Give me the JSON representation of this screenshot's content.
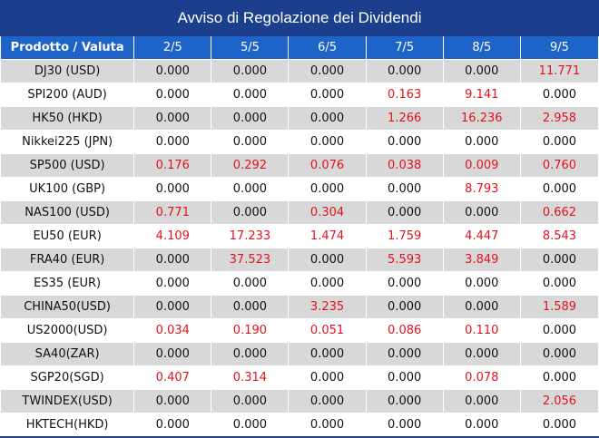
{
  "title": "Avviso di Regolazione dei Dividendi",
  "header": {
    "product": "Prodotto / Valuta",
    "dates": [
      "2/5",
      "5/5",
      "6/5",
      "7/5",
      "8/5",
      "9/5"
    ]
  },
  "colors": {
    "title_bg": "#1b3f8c",
    "header_bg": "#1e63c8",
    "stripe": "#d8d8d8",
    "nonzero": "#e0141c",
    "zero": "#111111"
  },
  "rows": [
    {
      "product": "DJ30 (USD)",
      "values": [
        "0.000",
        "0.000",
        "0.000",
        "0.000",
        "0.000",
        "11.771"
      ]
    },
    {
      "product": "SPI200 (AUD)",
      "values": [
        "0.000",
        "0.000",
        "0.000",
        "0.163",
        "9.141",
        "0.000"
      ]
    },
    {
      "product": "HK50 (HKD)",
      "values": [
        "0.000",
        "0.000",
        "0.000",
        "1.266",
        "16.236",
        "2.958"
      ]
    },
    {
      "product": "Nikkei225 (JPN)",
      "values": [
        "0.000",
        "0.000",
        "0.000",
        "0.000",
        "0.000",
        "0.000"
      ]
    },
    {
      "product": "SP500 (USD)",
      "values": [
        "0.176",
        "0.292",
        "0.076",
        "0.038",
        "0.009",
        "0.760"
      ]
    },
    {
      "product": "UK100 (GBP)",
      "values": [
        "0.000",
        "0.000",
        "0.000",
        "0.000",
        "8.793",
        "0.000"
      ]
    },
    {
      "product": "NAS100 (USD)",
      "values": [
        "0.771",
        "0.000",
        "0.304",
        "0.000",
        "0.000",
        "0.662"
      ]
    },
    {
      "product": "EU50 (EUR)",
      "values": [
        "4.109",
        "17.233",
        "1.474",
        "1.759",
        "4.447",
        "8.543"
      ]
    },
    {
      "product": "FRA40 (EUR)",
      "values": [
        "0.000",
        "37.523",
        "0.000",
        "5.593",
        "3.849",
        "0.000"
      ]
    },
    {
      "product": "ES35 (EUR)",
      "values": [
        "0.000",
        "0.000",
        "0.000",
        "0.000",
        "0.000",
        "0.000"
      ]
    },
    {
      "product": "CHINA50(USD)",
      "values": [
        "0.000",
        "0.000",
        "3.235",
        "0.000",
        "0.000",
        "1.589"
      ]
    },
    {
      "product": "US2000(USD)",
      "values": [
        "0.034",
        "0.190",
        "0.051",
        "0.086",
        "0.110",
        "0.000"
      ]
    },
    {
      "product": "SA40(ZAR)",
      "values": [
        "0.000",
        "0.000",
        "0.000",
        "0.000",
        "0.000",
        "0.000"
      ]
    },
    {
      "product": "SGP20(SGD)",
      "values": [
        "0.407",
        "0.314",
        "0.000",
        "0.000",
        "0.078",
        "0.000"
      ]
    },
    {
      "product": "TWINDEX(USD)",
      "values": [
        "0.000",
        "0.000",
        "0.000",
        "0.000",
        "0.000",
        "2.056"
      ]
    },
    {
      "product": "HKTECH(HKD)",
      "values": [
        "0.000",
        "0.000",
        "0.000",
        "0.000",
        "0.000",
        "0.000"
      ]
    }
  ]
}
